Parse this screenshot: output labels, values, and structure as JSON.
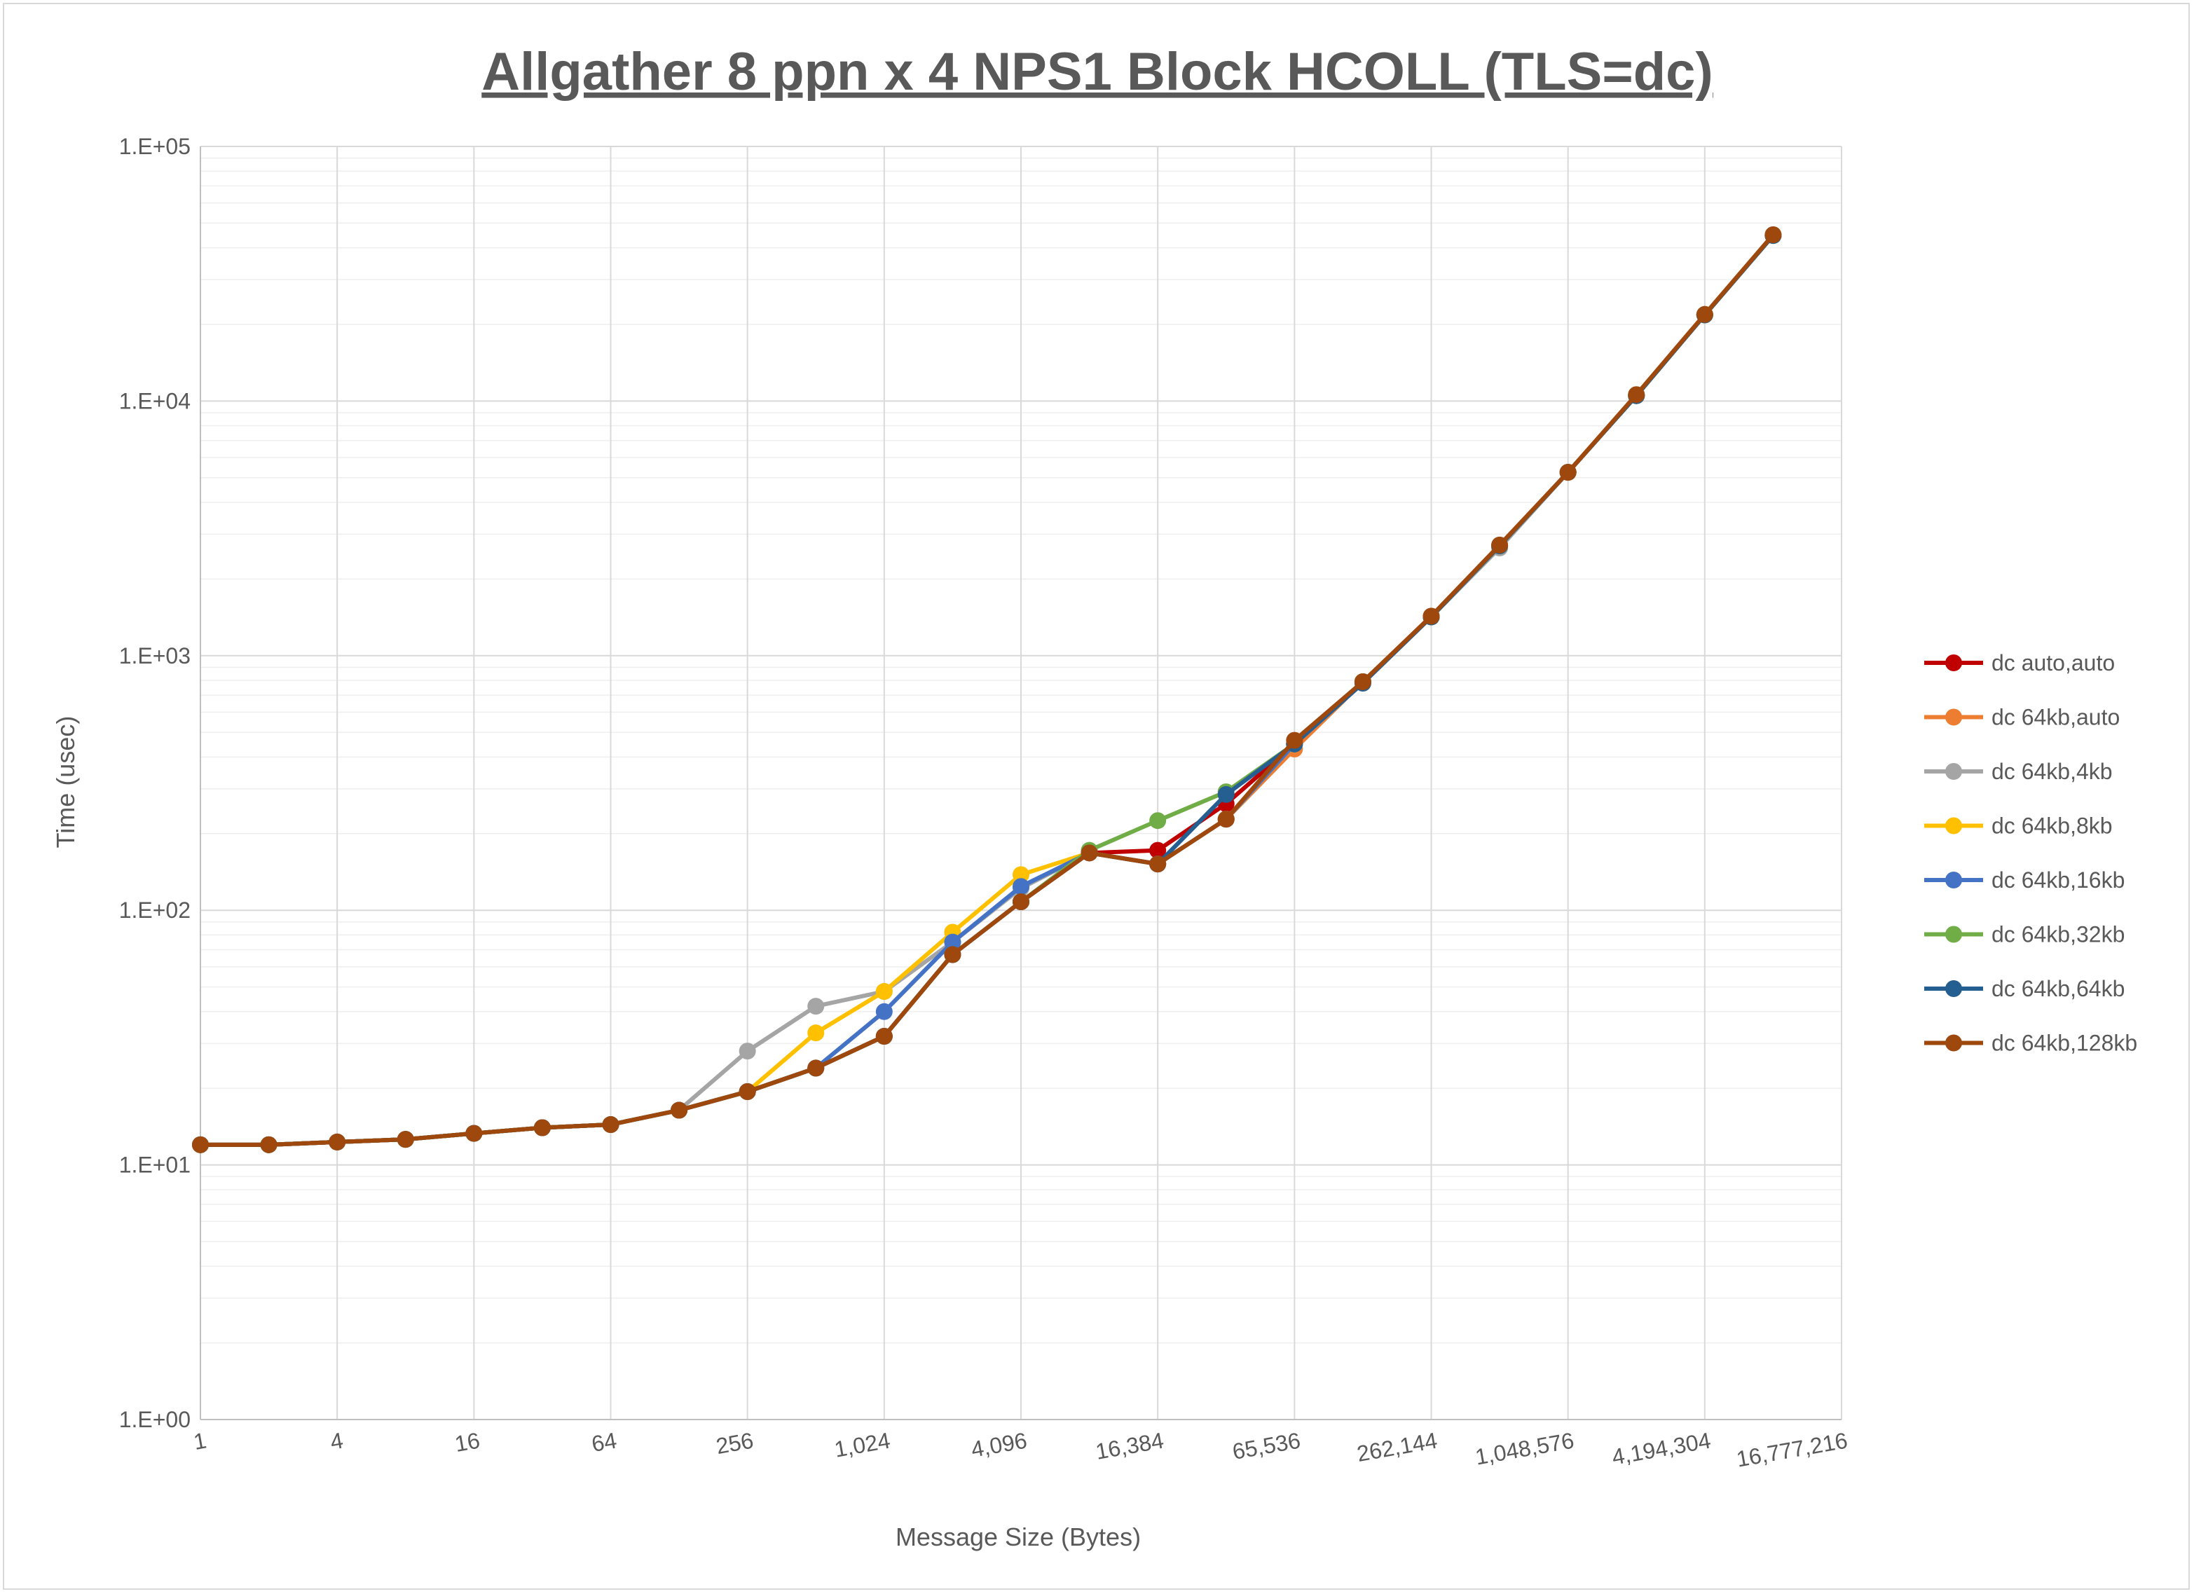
{
  "chart_data": {
    "type": "line",
    "title": "Allgather 8 ppn x 4 NPS1 Block HCOLL (TLS=dc)",
    "xlabel": "Message Size (Bytes)",
    "ylabel": "Time (usec)",
    "x_scale": "log2",
    "y_scale": "log10",
    "xlim": [
      1,
      16777216
    ],
    "ylim": [
      1,
      100000
    ],
    "x_tick_labels": [
      "1",
      "4",
      "16",
      "64",
      "256",
      "1,024",
      "4,096",
      "16,384",
      "65,536",
      "262,144",
      "1,048,576",
      "4,194,304",
      "16,777,216"
    ],
    "y_tick_labels": [
      "1.E+00",
      "1.E+01",
      "1.E+02",
      "1.E+03",
      "1.E+04",
      "1.E+05"
    ],
    "grid": true,
    "legend_position": "right",
    "x": [
      1,
      2,
      4,
      8,
      16,
      32,
      64,
      128,
      256,
      512,
      1024,
      2048,
      4096,
      8192,
      16384,
      32768,
      65536,
      131072,
      262144,
      524288,
      1048576,
      2097152,
      4194304,
      8388608
    ],
    "series": [
      {
        "name": "dc auto,auto",
        "color": "#c00000",
        "values": [
          12,
          12,
          12.3,
          12.6,
          13.3,
          14,
          14.4,
          16.4,
          19.4,
          24,
          32,
          67,
          108,
          168,
          172,
          262,
          450,
          790,
          1420,
          2700,
          5250,
          10500,
          21800,
          44700
        ]
      },
      {
        "name": "dc 64kb,auto",
        "color": "#ed7d31",
        "values": [
          12,
          12,
          12.3,
          12.6,
          13.3,
          14,
          14.4,
          16.4,
          19.4,
          24,
          32,
          67,
          108,
          168,
          152,
          228,
          430,
          790,
          1420,
          2700,
          5250,
          10500,
          21800,
          44700
        ]
      },
      {
        "name": "dc 64kb,4kb",
        "color": "#a5a5a5",
        "values": [
          12,
          12,
          12.3,
          12.6,
          13.3,
          14,
          14.4,
          16.4,
          28,
          42,
          48,
          75,
          122,
          168,
          152,
          228,
          450,
          780,
          1420,
          2650,
          5250,
          10500,
          21800,
          44700
        ]
      },
      {
        "name": "dc 64kb,8kb",
        "color": "#ffc000",
        "values": [
          12,
          12,
          12.3,
          12.6,
          13.3,
          14,
          14.4,
          16.4,
          19.4,
          33,
          48,
          82,
          138,
          168,
          152,
          228,
          450,
          790,
          1420,
          2700,
          5250,
          10500,
          21800,
          44700
        ]
      },
      {
        "name": "dc 64kb,16kb",
        "color": "#4472c4",
        "values": [
          12,
          12,
          12.3,
          12.6,
          13.3,
          14,
          14.4,
          16.4,
          19.4,
          24,
          40,
          75,
          124,
          168,
          152,
          228,
          450,
          790,
          1420,
          2700,
          5250,
          10500,
          21800,
          44700
        ]
      },
      {
        "name": "dc 64kb,32kb",
        "color": "#70ad47",
        "values": [
          12,
          12,
          12.3,
          12.6,
          13.3,
          14,
          14.4,
          16.4,
          19.4,
          24,
          32,
          67,
          108,
          172,
          225,
          292,
          450,
          790,
          1420,
          2700,
          5250,
          10500,
          21800,
          44700
        ]
      },
      {
        "name": "dc 64kb,64kb",
        "color": "#255e91",
        "values": [
          12,
          12,
          12.3,
          12.6,
          13.3,
          14,
          14.4,
          16.4,
          19.4,
          24,
          32,
          67,
          108,
          168,
          152,
          285,
          450,
          780,
          1420,
          2700,
          5250,
          10500,
          21800,
          44700
        ]
      },
      {
        "name": "dc 64kb,128kb",
        "color": "#9e480e",
        "values": [
          12,
          12,
          12.3,
          12.6,
          13.3,
          14,
          14.4,
          16.4,
          19.4,
          24,
          32,
          67,
          108,
          168,
          152,
          228,
          465,
          790,
          1430,
          2720,
          5250,
          10600,
          21900,
          45000
        ]
      }
    ]
  }
}
